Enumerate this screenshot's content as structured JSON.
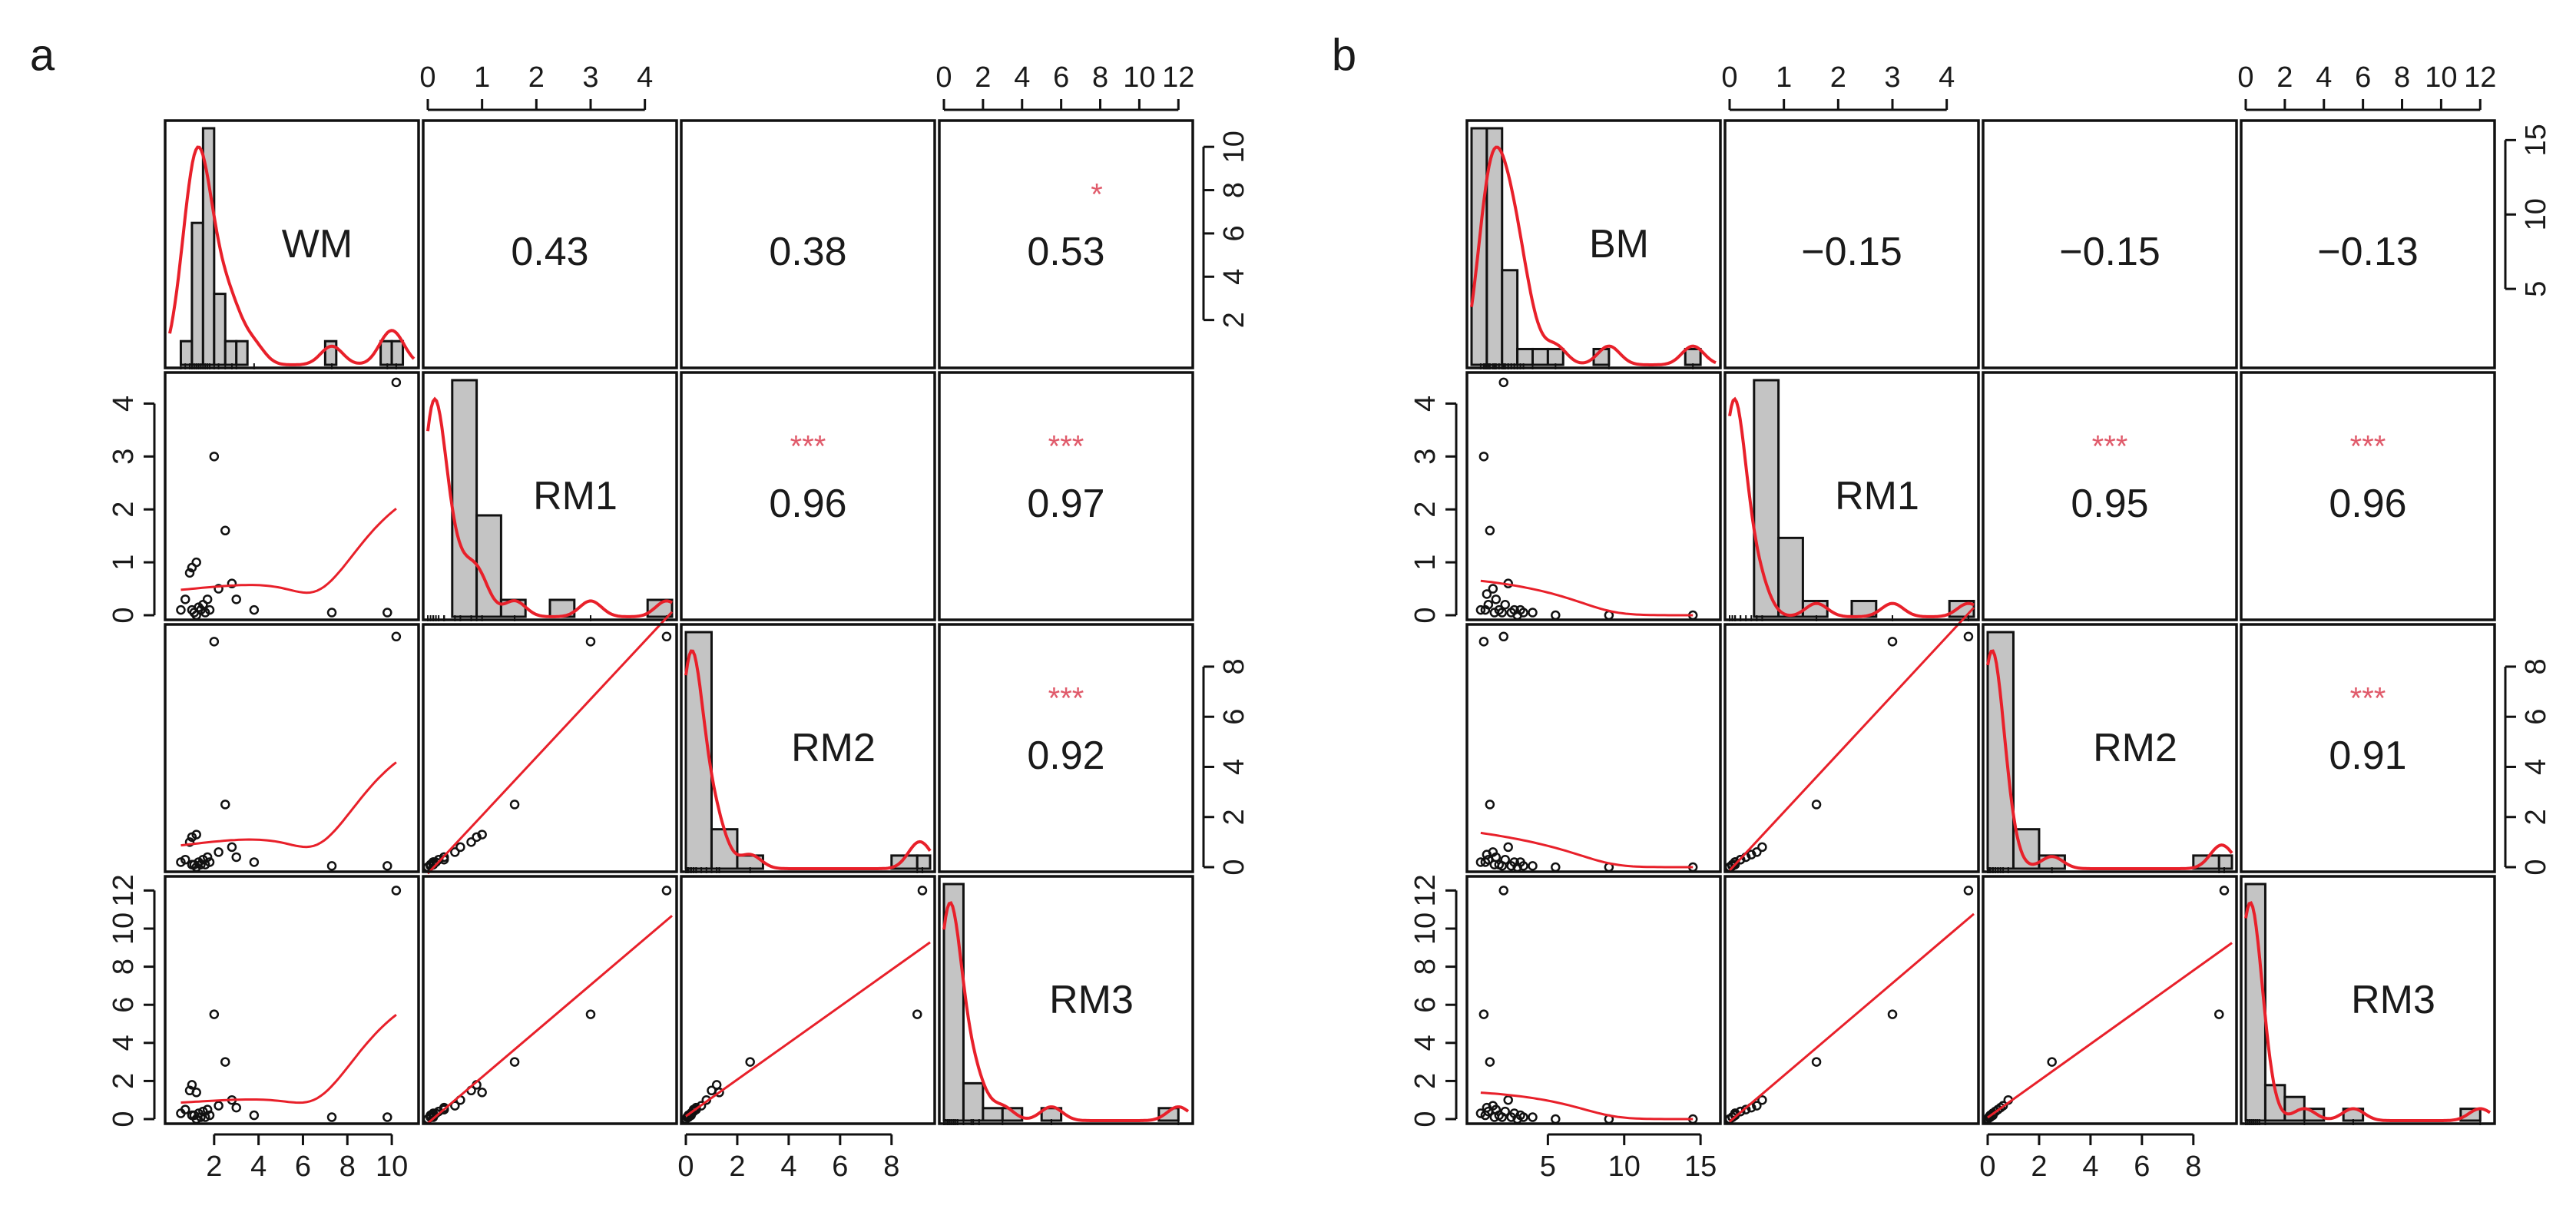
{
  "figure": {
    "description_labels": [
      "a",
      "b"
    ],
    "line_color": "#e8202a",
    "star_color": "#e05a6a",
    "bar_fill": "#c4c4c4"
  },
  "chart_data": [
    {
      "type": "scatter-matrix",
      "panel_label": "a",
      "variables": [
        "WM",
        "RM1",
        "RM2",
        "RM3"
      ],
      "ranges": [
        [
          0,
          11
        ],
        [
          0,
          4.5
        ],
        [
          0,
          9.5
        ],
        [
          0,
          12.5
        ]
      ],
      "ticks": [
        [
          2,
          4,
          6,
          8,
          10
        ],
        [
          0,
          1,
          2,
          3,
          4
        ],
        [
          0,
          2,
          4,
          6,
          8
        ],
        [
          0,
          2,
          4,
          6,
          8,
          10,
          12
        ]
      ],
      "hist_ticks_right": [
        2,
        4,
        6,
        8,
        10
      ],
      "correlations": [
        {
          "row": 0,
          "col": 1,
          "value": "0.43",
          "stars": ""
        },
        {
          "row": 0,
          "col": 2,
          "value": "0.38",
          "stars": ""
        },
        {
          "row": 0,
          "col": 3,
          "value": "0.53",
          "stars": "*"
        },
        {
          "row": 1,
          "col": 2,
          "value": "0.96",
          "stars": "***"
        },
        {
          "row": 1,
          "col": 3,
          "value": "0.97",
          "stars": "***"
        },
        {
          "row": 2,
          "col": 3,
          "value": "0.92",
          "stars": "***"
        }
      ],
      "histograms": [
        {
          "breaks": [
            0,
            0.5,
            1,
            1.5,
            2,
            2.5,
            3,
            3.5,
            4,
            4.5,
            5,
            5.5,
            6,
            6.5,
            7,
            7.5,
            8,
            8.5,
            9,
            9.5,
            10,
            10.5,
            11
          ],
          "counts": [
            0,
            1,
            6,
            10,
            3,
            1,
            1,
            0,
            0,
            0,
            0,
            0,
            0,
            0,
            1,
            0,
            0,
            0,
            0,
            1,
            1,
            0
          ]
        },
        {
          "breaks": [
            0,
            0.45,
            0.9,
            1.35,
            1.8,
            2.25,
            2.7,
            3.15,
            3.6,
            4.05,
            4.5
          ],
          "counts": [
            0,
            14,
            6,
            1,
            0,
            1,
            0,
            0,
            0,
            1
          ]
        },
        {
          "breaks": [
            0,
            1,
            2,
            3,
            4,
            5,
            6,
            7,
            8,
            9,
            9.5
          ],
          "counts": [
            18,
            3,
            1,
            0,
            0,
            0,
            0,
            0,
            1,
            1
          ]
        },
        {
          "breaks": [
            0,
            1,
            2,
            3,
            4,
            5,
            6,
            7,
            8,
            9,
            10,
            11,
            12,
            12.5
          ],
          "counts": [
            19,
            3,
            1,
            1,
            0,
            1,
            0,
            0,
            0,
            0,
            0,
            1,
            0
          ]
        }
      ],
      "points": {
        "WM": [
          0.5,
          0.7,
          0.9,
          1.0,
          1.1,
          1.2,
          1.3,
          1.4,
          1.5,
          1.6,
          1.7,
          1.8,
          2.0,
          2.2,
          2.5,
          2.8,
          3.0,
          3.8,
          7.3,
          9.8,
          1.0,
          1.2,
          10.2
        ],
        "RM1": [
          0.1,
          0.3,
          0.8,
          0.9,
          0.05,
          1.0,
          0.15,
          0.1,
          0.2,
          0.05,
          0.3,
          0.1,
          3.0,
          0.5,
          1.6,
          0.6,
          0.3,
          0.1,
          0.05,
          0.05,
          0.1,
          0.0,
          4.4
        ],
        "RM2": [
          0.2,
          0.3,
          1.0,
          1.2,
          0.1,
          1.3,
          0.2,
          0.1,
          0.3,
          0.1,
          0.4,
          0.2,
          9.0,
          0.6,
          2.5,
          0.8,
          0.4,
          0.2,
          0.05,
          0.05,
          0.1,
          0.0,
          9.2
        ],
        "RM3": [
          0.3,
          0.5,
          1.5,
          1.8,
          0.2,
          1.4,
          0.3,
          0.1,
          0.4,
          0.1,
          0.5,
          0.2,
          5.5,
          0.7,
          3.0,
          1.0,
          0.6,
          0.2,
          0.1,
          0.1,
          0.2,
          0.0,
          12.0
        ]
      }
    },
    {
      "type": "scatter-matrix",
      "panel_label": "b",
      "variables": [
        "BM",
        "RM1",
        "RM2",
        "RM3"
      ],
      "ranges": [
        [
          0,
          16
        ],
        [
          0,
          4.5
        ],
        [
          0,
          9.5
        ],
        [
          0,
          12.5
        ]
      ],
      "ticks": [
        [
          5,
          10,
          15
        ],
        [
          0,
          1,
          2,
          3,
          4
        ],
        [
          0,
          2,
          4,
          6,
          8
        ],
        [
          0,
          2,
          4,
          6,
          8,
          10,
          12
        ]
      ],
      "hist_ticks_right": [
        5,
        10,
        15
      ],
      "correlations": [
        {
          "row": 0,
          "col": 1,
          "value": "−0.15",
          "stars": ""
        },
        {
          "row": 0,
          "col": 2,
          "value": "−0.15",
          "stars": ""
        },
        {
          "row": 0,
          "col": 3,
          "value": "−0.13",
          "stars": ""
        },
        {
          "row": 1,
          "col": 2,
          "value": "0.95",
          "stars": "***"
        },
        {
          "row": 1,
          "col": 3,
          "value": "0.96",
          "stars": "***"
        },
        {
          "row": 2,
          "col": 3,
          "value": "0.91",
          "stars": "***"
        }
      ],
      "histograms": [
        {
          "breaks": [
            0,
            1,
            2,
            3,
            4,
            5,
            6,
            7,
            8,
            9,
            10,
            11,
            12,
            13,
            14,
            15,
            16
          ],
          "counts": [
            15,
            15,
            6,
            1,
            1,
            1,
            0,
            0,
            1,
            0,
            0,
            0,
            0,
            0,
            1,
            0
          ]
        },
        {
          "breaks": [
            0,
            0.45,
            0.9,
            1.35,
            1.8,
            2.25,
            2.7,
            3.15,
            3.6,
            4.05,
            4.5
          ],
          "counts": [
            0,
            15,
            5,
            1,
            0,
            1,
            0,
            0,
            0,
            1
          ]
        },
        {
          "breaks": [
            0,
            1,
            2,
            3,
            4,
            5,
            6,
            7,
            8,
            9,
            9.5
          ],
          "counts": [
            18,
            3,
            1,
            0,
            0,
            0,
            0,
            0,
            1,
            1
          ]
        },
        {
          "breaks": [
            0,
            1,
            2,
            3,
            4,
            5,
            6,
            7,
            8,
            9,
            10,
            11,
            12,
            12.5
          ],
          "counts": [
            20,
            3,
            2,
            1,
            0,
            1,
            0,
            0,
            0,
            0,
            0,
            1,
            0
          ]
        }
      ],
      "points": {
        "BM": [
          0.6,
          0.8,
          1.0,
          1.2,
          1.4,
          1.6,
          1.8,
          2.0,
          2.2,
          2.4,
          2.6,
          2.8,
          3.0,
          3.2,
          3.4,
          4.0,
          5.5,
          9.0,
          14.5,
          0.9,
          1.1,
          1.5,
          2.1
        ],
        "RM1": [
          0.1,
          3.0,
          0.4,
          1.6,
          0.5,
          0.3,
          0.1,
          0.05,
          0.2,
          0.6,
          0.05,
          0.1,
          0.0,
          0.1,
          0.05,
          0.05,
          0.0,
          0.0,
          0.0,
          0.1,
          0.2,
          0.05,
          4.4
        ],
        "RM2": [
          0.2,
          9.0,
          0.5,
          2.5,
          0.6,
          0.4,
          0.1,
          0.05,
          0.3,
          0.8,
          0.05,
          0.2,
          0.0,
          0.2,
          0.05,
          0.05,
          0.0,
          0.0,
          0.0,
          0.2,
          0.3,
          0.1,
          9.2
        ],
        "RM3": [
          0.3,
          5.5,
          0.6,
          3.0,
          0.7,
          0.5,
          0.2,
          0.1,
          0.4,
          1.0,
          0.1,
          0.3,
          0.0,
          0.2,
          0.1,
          0.1,
          0.0,
          0.0,
          0.0,
          0.2,
          0.4,
          0.1,
          12.0
        ]
      }
    }
  ]
}
